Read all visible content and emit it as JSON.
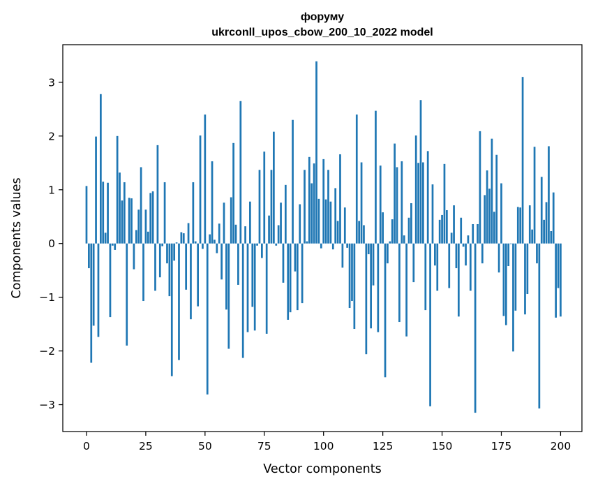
{
  "chart_data": {
    "type": "bar",
    "title_line1": "форуму",
    "title_line2": "ukrconll_upos_cbow_200_10_2022 model",
    "xlabel": "Vector components",
    "ylabel": "Components values",
    "xlim": [
      -10,
      209
    ],
    "ylim": [
      -3.5,
      3.7
    ],
    "xticks": [
      0,
      25,
      50,
      75,
      100,
      125,
      150,
      175,
      200
    ],
    "yticks": [
      -3,
      -2,
      -1,
      0,
      1,
      2,
      3
    ],
    "bar_color": "#1f77b4",
    "grid": false,
    "legend": false,
    "values": [
      1.07,
      -0.46,
      -2.22,
      -1.53,
      1.99,
      -1.74,
      2.78,
      1.15,
      0.2,
      1.13,
      -1.37,
      -0.04,
      -0.12,
      2.0,
      1.32,
      0.8,
      1.14,
      -1.9,
      0.85,
      0.84,
      -0.48,
      0.25,
      0.63,
      1.42,
      -1.07,
      0.63,
      0.22,
      0.94,
      0.97,
      -0.88,
      1.83,
      -0.63,
      -0.05,
      1.14,
      -0.37,
      -0.98,
      -2.47,
      -0.32,
      0.02,
      -2.17,
      0.21,
      0.19,
      -0.86,
      0.38,
      -1.41,
      1.14,
      0.04,
      -1.17,
      2.01,
      -0.1,
      2.4,
      -2.81,
      0.17,
      1.53,
      0.07,
      -0.18,
      0.37,
      -0.67,
      0.76,
      -1.23,
      -1.96,
      0.86,
      1.87,
      0.35,
      -0.77,
      2.65,
      -2.13,
      0.32,
      -1.65,
      0.78,
      -1.18,
      -1.62,
      -0.04,
      1.37,
      -0.27,
      1.71,
      -1.68,
      0.52,
      1.37,
      2.08,
      -0.04,
      0.34,
      0.76,
      -0.73,
      1.09,
      -1.42,
      -1.28,
      2.3,
      -0.52,
      -1.24,
      0.73,
      -1.11,
      1.37,
      0.04,
      1.61,
      1.12,
      1.49,
      3.39,
      0.83,
      -0.09,
      1.57,
      0.82,
      1.37,
      0.78,
      -0.11,
      1.03,
      0.42,
      1.66,
      -0.45,
      0.67,
      -0.08,
      -1.2,
      -1.07,
      -1.59,
      2.4,
      0.42,
      1.51,
      0.34,
      -2.06,
      -0.2,
      -1.58,
      -0.78,
      2.47,
      -1.65,
      1.45,
      0.58,
      -2.49,
      -0.37,
      0.04,
      0.45,
      1.86,
      1.42,
      -1.46,
      1.53,
      0.15,
      -1.73,
      0.48,
      0.75,
      -0.72,
      2.01,
      1.5,
      2.67,
      1.51,
      -1.24,
      1.72,
      -3.03,
      1.1,
      -0.41,
      -0.88,
      0.44,
      0.53,
      1.48,
      0.62,
      -0.83,
      0.2,
      0.71,
      -0.46,
      -1.36,
      0.48,
      -0.06,
      -0.41,
      0.15,
      -0.88,
      0.36,
      -3.15,
      0.36,
      2.09,
      -0.37,
      0.9,
      1.36,
      1.02,
      1.95,
      0.59,
      1.65,
      -0.54,
      1.12,
      -1.35,
      -1.52,
      -0.42,
      -0.01,
      -2.01,
      -1.25,
      0.68,
      0.67,
      3.1,
      -1.32,
      -0.94,
      0.71,
      0.26,
      1.8,
      -0.37,
      -3.07,
      1.24,
      0.44,
      0.77,
      1.81,
      0.23,
      0.95,
      -1.38,
      -0.83,
      -1.36
    ]
  }
}
